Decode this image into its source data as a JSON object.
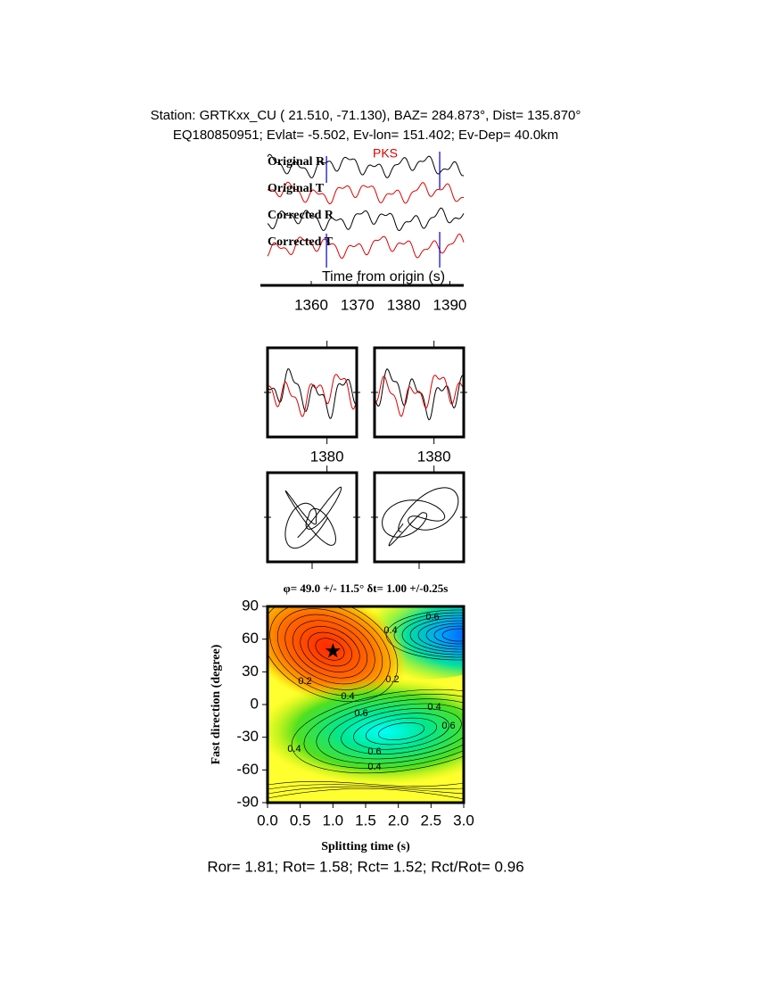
{
  "header": {
    "line1": "Station: GRTKxx_CU (  21.510,  -71.130), BAZ=  284.873°, Dist=  135.870°",
    "line2": "EQ180850951; Evlat=  -5.502, Ev-lon= 151.402; Ev-Dep= 40.0km"
  },
  "chart_data": [
    {
      "type": "traces",
      "phase": "PKS",
      "labels": [
        "Original R",
        "Original T",
        "Corrected R",
        "Corrected T"
      ],
      "xlabel": "Time from origin (s)",
      "xlim": [
        1349,
        1393
      ],
      "xticks": [
        1360,
        1370,
        1380,
        1390
      ],
      "window": [
        1363.3,
        1387.8
      ],
      "colors": [
        "#000000",
        "#dd0000"
      ]
    },
    {
      "type": "waveform",
      "xlim": [
        1370,
        1385
      ],
      "xticks": [
        1380
      ]
    },
    {
      "type": "waveform",
      "xlim": [
        1370,
        1385
      ],
      "xticks": [
        1380
      ]
    },
    {
      "type": "contour",
      "title": "φ= 49.0 +/- 11.5° δt= 1.00 +/-0.25s",
      "xlabel": "Splitting time (s)",
      "ylabel": "Fast direction (degree)",
      "xlim": [
        0,
        3
      ],
      "ylim": [
        -90,
        90
      ],
      "xticks": [
        {
          "value": 0,
          "label": "0.0"
        },
        0.5,
        {
          "value": 1,
          "label": "1.0"
        },
        1.5,
        {
          "value": 2,
          "label": "2.0"
        },
        2.5,
        {
          "value": 3,
          "label": "3.0"
        }
      ],
      "yticks": [
        90,
        60,
        30,
        0,
        -30,
        -60,
        -90
      ],
      "x": [
        1.0
      ],
      "y": [
        49
      ],
      "contour_labels": [
        0.6,
        0.4,
        0.2,
        0.2,
        0.4,
        0.6,
        0.4,
        0.6,
        0.4,
        0.6,
        0.4
      ]
    }
  ],
  "footer": "Ror= 1.81; Rot= 1.58; Rct= 1.52; Rct/Rot= 0.96"
}
